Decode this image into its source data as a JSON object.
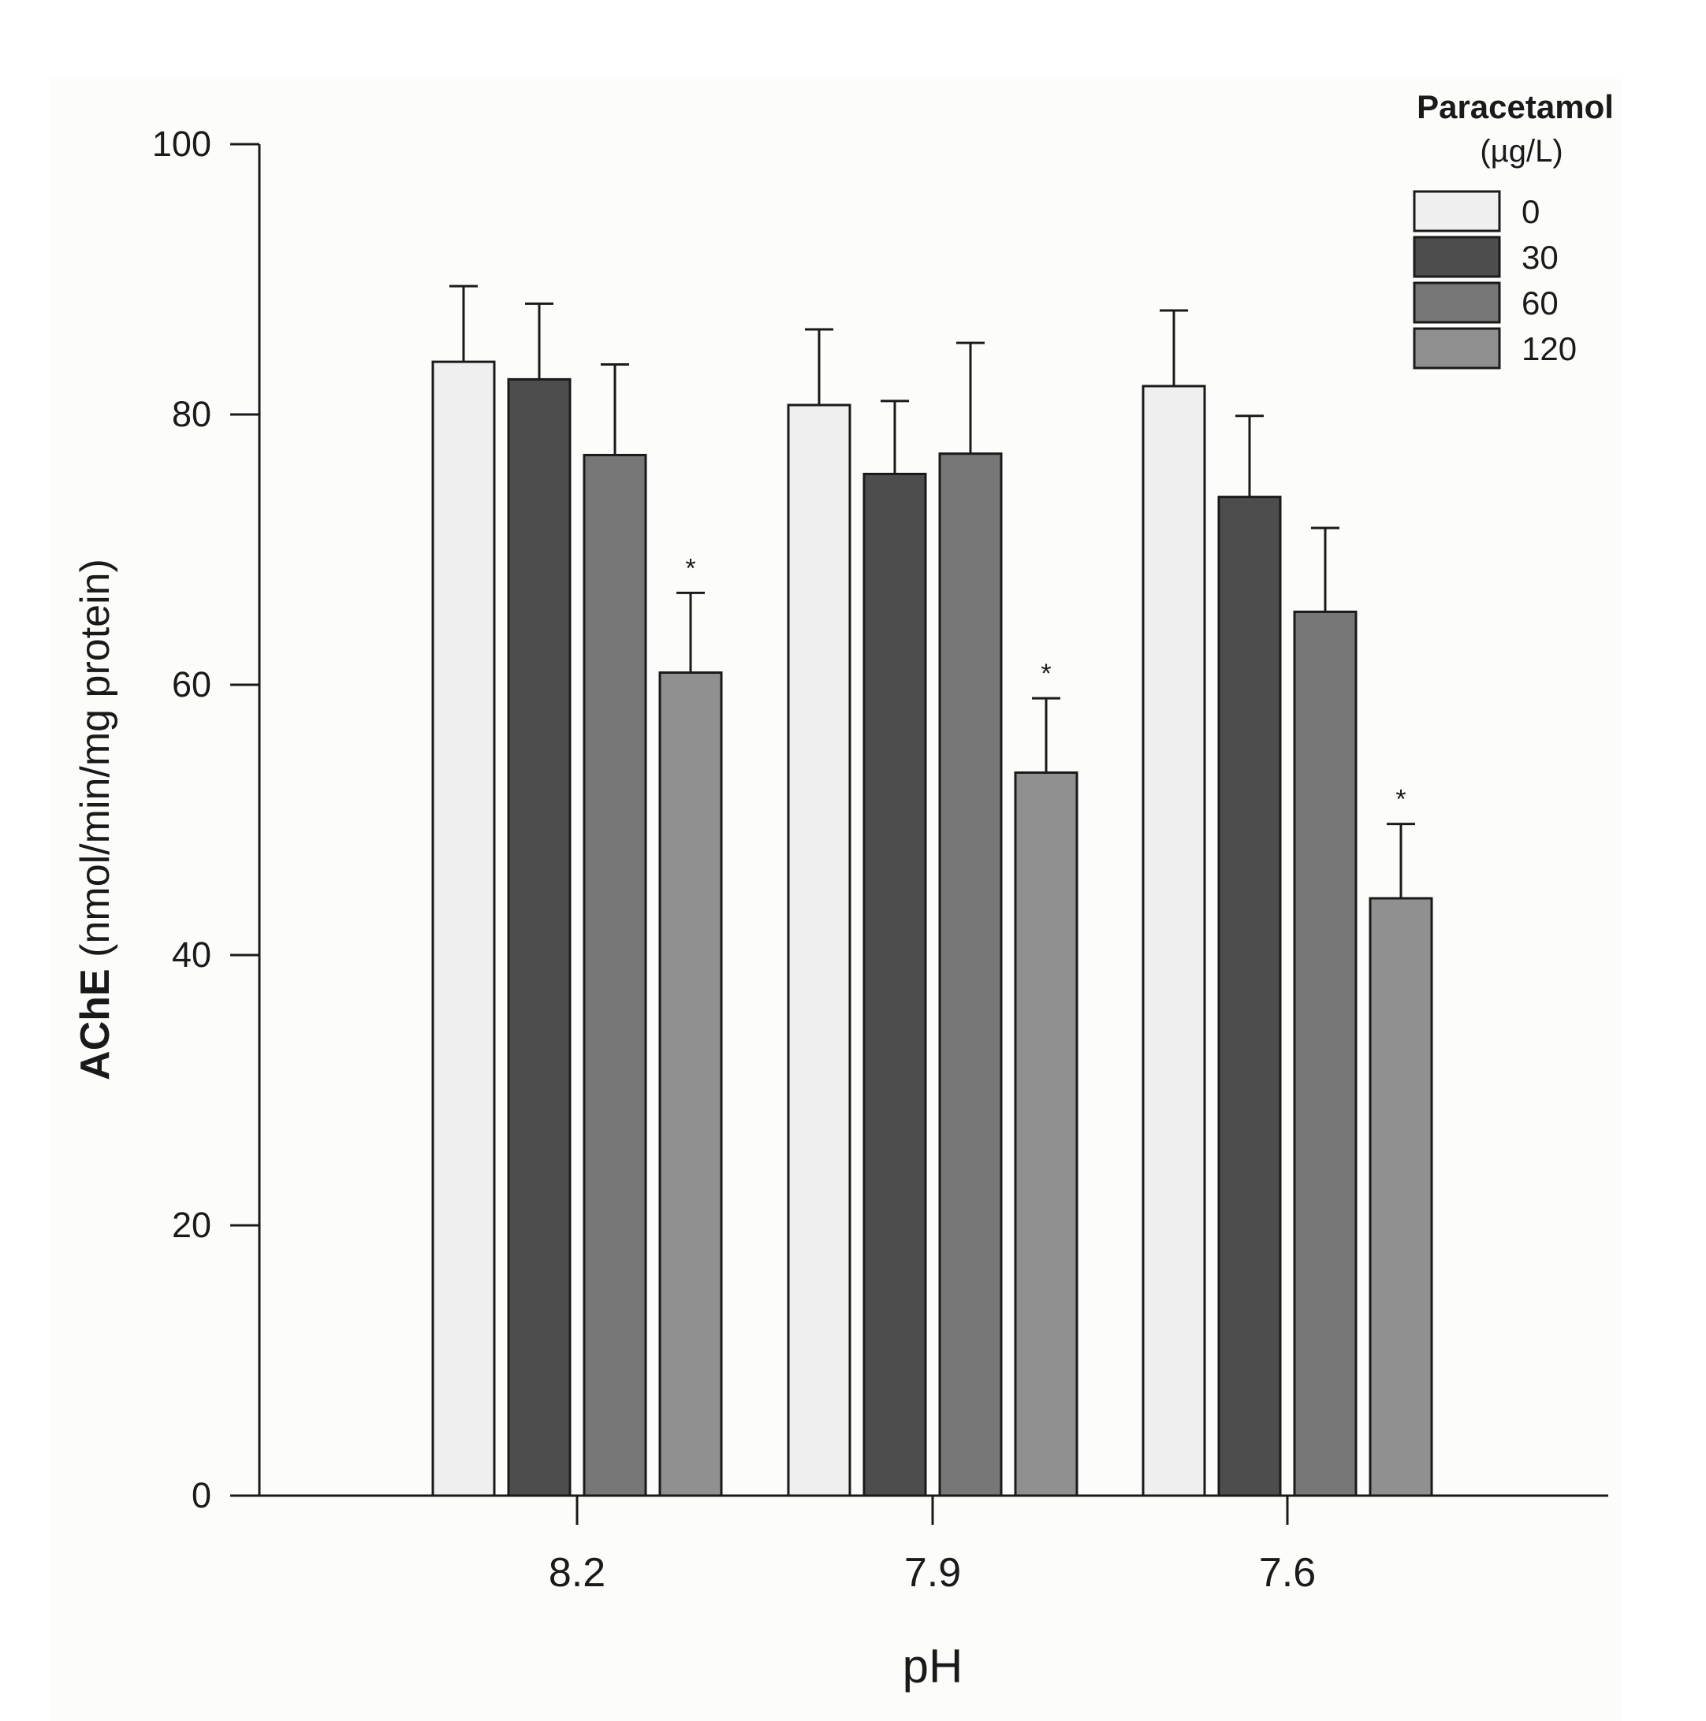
{
  "chart_data": {
    "type": "bar",
    "title": "",
    "xlabel": "pH",
    "ylabel_bold": "AChE",
    "ylabel_rest": " (nmol/min/mg protein)",
    "ylim": [
      0,
      100
    ],
    "yticks": [
      0,
      20,
      40,
      60,
      80,
      100
    ],
    "categories": [
      "8.2",
      "7.9",
      "7.6"
    ],
    "legend": {
      "title": "Paracetamol",
      "subtitle": "(µg/L)",
      "position": "top-right"
    },
    "series": [
      {
        "name": "0",
        "color": "#efefef",
        "values": [
          83.9,
          80.7,
          82.1
        ],
        "errors": [
          5.6,
          5.6,
          5.6
        ]
      },
      {
        "name": "30",
        "color": "#4d4d4d",
        "values": [
          82.6,
          75.6,
          73.9
        ],
        "errors": [
          5.6,
          5.4,
          6.0
        ]
      },
      {
        "name": "60",
        "color": "#777777",
        "values": [
          77.0,
          77.1,
          65.4
        ],
        "errors": [
          6.7,
          8.2,
          6.2
        ]
      },
      {
        "name": "120",
        "color": "#909090",
        "values": [
          60.9,
          53.5,
          44.2
        ],
        "errors": [
          5.9,
          5.5,
          5.5
        ]
      }
    ],
    "annotations": [
      {
        "text": "*",
        "category": "8.2",
        "series": "120"
      },
      {
        "text": "*",
        "category": "7.9",
        "series": "120"
      },
      {
        "text": "*",
        "category": "7.6",
        "series": "120"
      }
    ]
  }
}
